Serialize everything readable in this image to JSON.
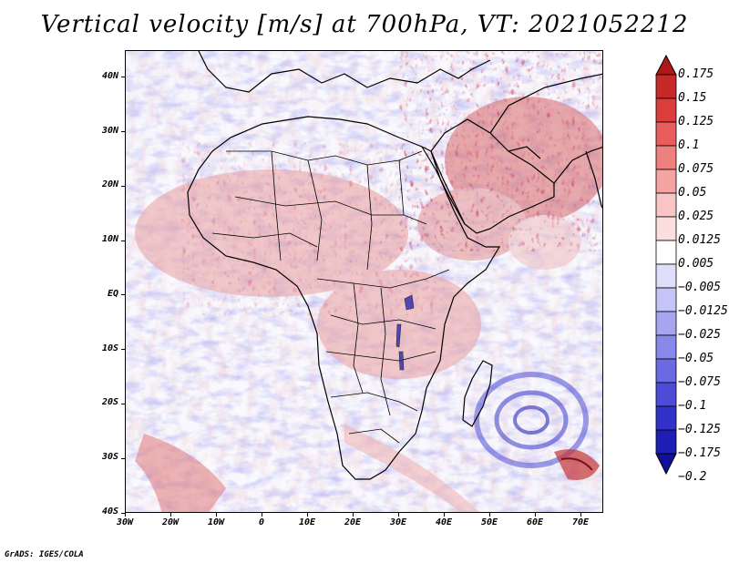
{
  "title": "Vertical velocity [m/s] at 700hPa, VT: 2021052212",
  "credit": "GrADS: IGES/COLA",
  "map": {
    "lon_range": [
      -30,
      75
    ],
    "lat_range": [
      -40,
      45
    ],
    "lat_labels": [
      {
        "lat": 40,
        "label": "40N"
      },
      {
        "lat": 30,
        "label": "30N"
      },
      {
        "lat": 20,
        "label": "20N"
      },
      {
        "lat": 10,
        "label": "10N"
      },
      {
        "lat": 0,
        "label": "EQ"
      },
      {
        "lat": -10,
        "label": "10S"
      },
      {
        "lat": -20,
        "label": "20S"
      },
      {
        "lat": -30,
        "label": "30S"
      },
      {
        "lat": -40,
        "label": "40S"
      }
    ],
    "lon_labels": [
      {
        "lon": -30,
        "label": "30W"
      },
      {
        "lon": -20,
        "label": "20W"
      },
      {
        "lon": -10,
        "label": "10W"
      },
      {
        "lon": 0,
        "label": "0"
      },
      {
        "lon": 10,
        "label": "10E"
      },
      {
        "lon": 20,
        "label": "20E"
      },
      {
        "lon": 30,
        "label": "30E"
      },
      {
        "lon": 40,
        "label": "40E"
      },
      {
        "lon": 50,
        "label": "50E"
      },
      {
        "lon": 60,
        "label": "60E"
      },
      {
        "lon": 70,
        "label": "70E"
      }
    ]
  },
  "colorbar": {
    "levels": [
      "0.175",
      "0.15",
      "0.125",
      "0.1",
      "0.075",
      "0.05",
      "0.025",
      "0.0125",
      "0.005",
      "−0.005",
      "−0.0125",
      "−0.025",
      "−0.05",
      "−0.075",
      "−0.1",
      "−0.125",
      "−0.175",
      "−0.2"
    ],
    "colors": [
      "#b01818",
      "#c72828",
      "#dc3c3c",
      "#e85e5e",
      "#ef8080",
      "#f4a3a3",
      "#f8c4c4",
      "#fbdede",
      "#ffffff",
      "#dedefb",
      "#c4c4f6",
      "#a6a6f0",
      "#8888ea",
      "#6a6ae2",
      "#4c4cd8",
      "#3232c8",
      "#1e1eb4",
      "#10109a"
    ]
  }
}
